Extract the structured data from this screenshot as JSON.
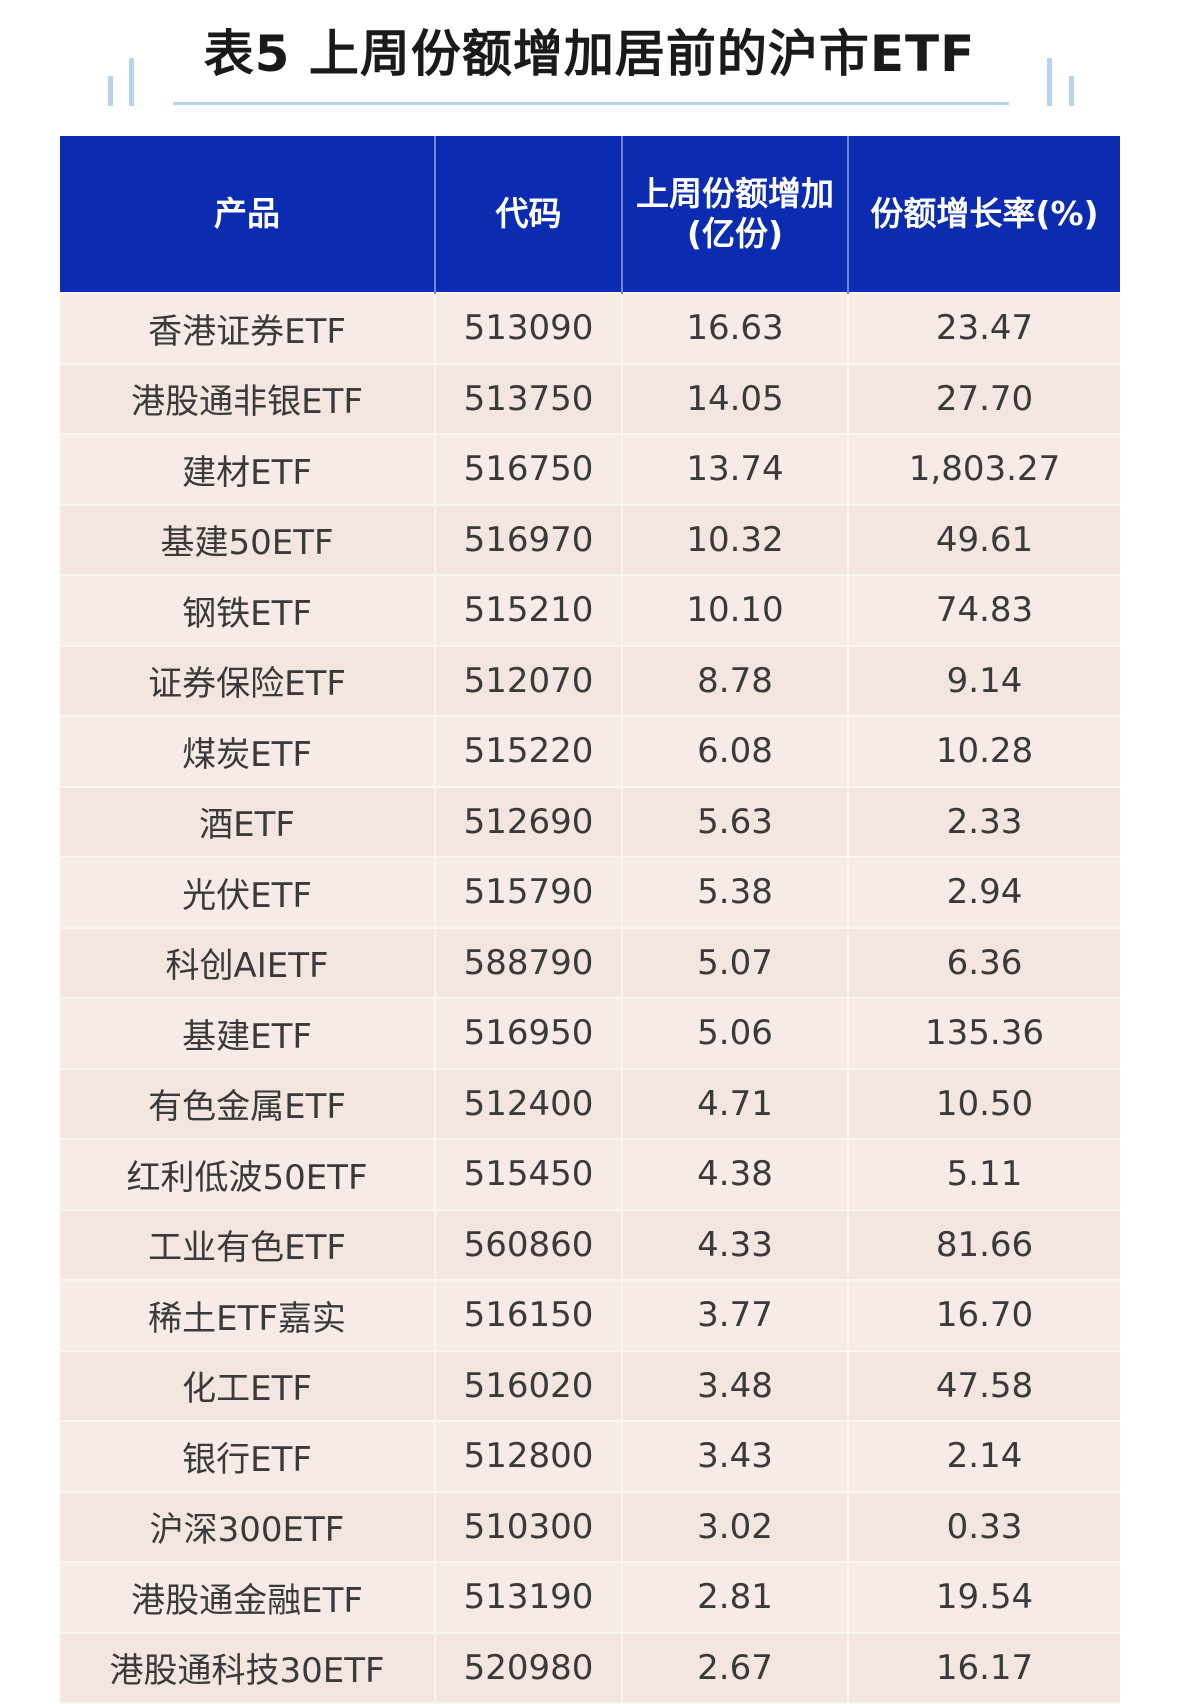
{
  "title": "表5 上周份额增加居前的沪市ETF",
  "colors": {
    "header_bg": "#0b2cb0",
    "row_bg": "#f6ebe6",
    "accent_line": "#b9d3ee"
  },
  "table": {
    "headers": [
      "产品",
      "代码",
      "上周份额增加(亿份)",
      "份额增长率(%)"
    ],
    "header_lines": {
      "col3_line1": "上周份额增加",
      "col3_line2": "(亿份)"
    },
    "rows": [
      [
        "香港证券ETF",
        "513090",
        "16.63",
        "23.47"
      ],
      [
        "港股通非银ETF",
        "513750",
        "14.05",
        "27.70"
      ],
      [
        "建材ETF",
        "516750",
        "13.74",
        "1,803.27"
      ],
      [
        "基建50ETF",
        "516970",
        "10.32",
        "49.61"
      ],
      [
        "钢铁ETF",
        "515210",
        "10.10",
        "74.83"
      ],
      [
        "证券保险ETF",
        "512070",
        "8.78",
        "9.14"
      ],
      [
        "煤炭ETF",
        "515220",
        "6.08",
        "10.28"
      ],
      [
        "酒ETF",
        "512690",
        "5.63",
        "2.33"
      ],
      [
        "光伏ETF",
        "515790",
        "5.38",
        "2.94"
      ],
      [
        "科创AIETF",
        "588790",
        "5.07",
        "6.36"
      ],
      [
        "基建ETF",
        "516950",
        "5.06",
        "135.36"
      ],
      [
        "有色金属ETF",
        "512400",
        "4.71",
        "10.50"
      ],
      [
        "红利低波50ETF",
        "515450",
        "4.38",
        "5.11"
      ],
      [
        "工业有色ETF",
        "560860",
        "4.33",
        "81.66"
      ],
      [
        "稀土ETF嘉实",
        "516150",
        "3.77",
        "16.70"
      ],
      [
        "化工ETF",
        "516020",
        "3.48",
        "47.58"
      ],
      [
        "银行ETF",
        "512800",
        "3.43",
        "2.14"
      ],
      [
        "沪深300ETF",
        "510300",
        "3.02",
        "0.33"
      ],
      [
        "港股通金融ETF",
        "513190",
        "2.81",
        "19.54"
      ],
      [
        "港股通科技30ETF",
        "520980",
        "2.67",
        "16.17"
      ]
    ]
  }
}
